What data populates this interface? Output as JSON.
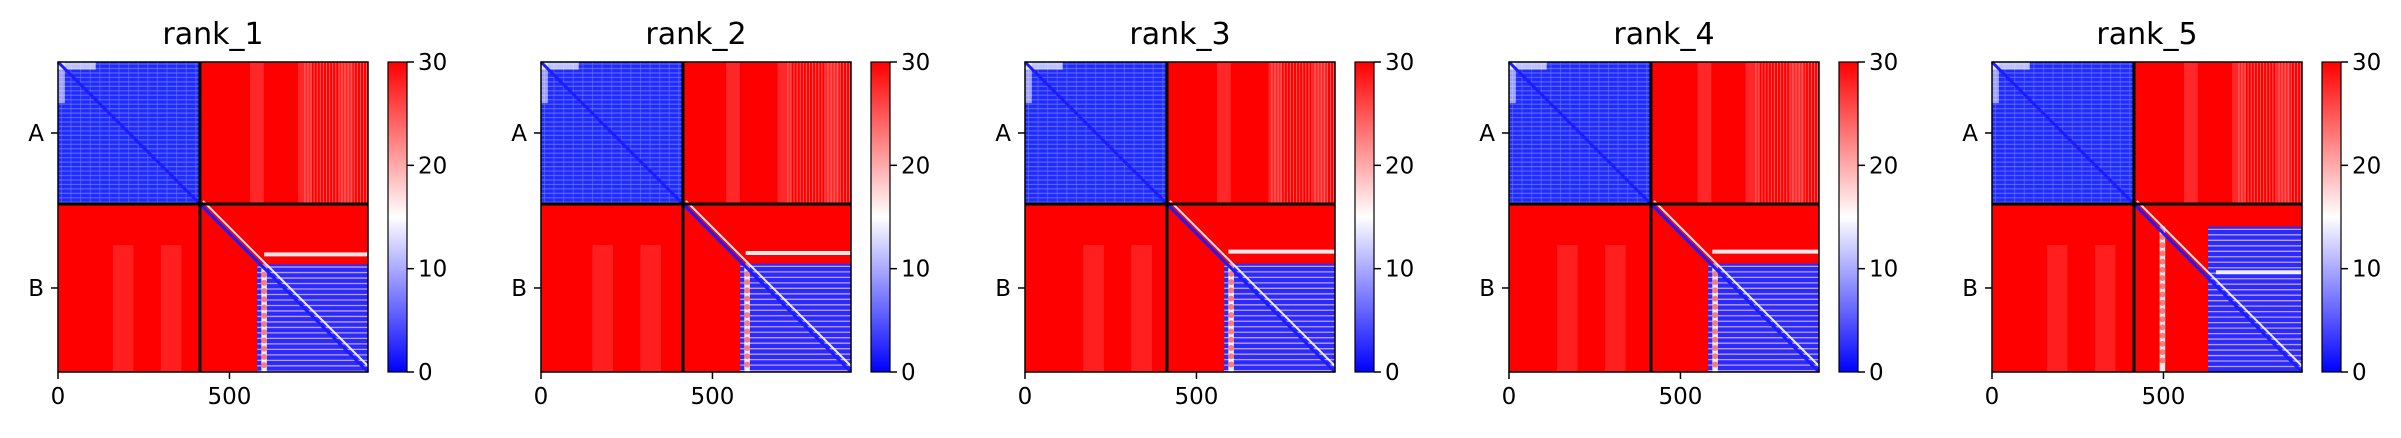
{
  "chart_data": [
    {
      "type": "heatmap",
      "title": "rank_1",
      "xlim": [
        0,
        904
      ],
      "x_ticks": [
        "0",
        "500"
      ],
      "x_tick_values": [
        0,
        500
      ],
      "chain_boundary": 414,
      "chains": [
        {
          "label": "A",
          "start": 0,
          "end": 414
        },
        {
          "label": "B",
          "start": 414,
          "end": 904
        }
      ],
      "colorbar": {
        "min": 0,
        "max": 30,
        "ticks": [
          "0",
          "10",
          "20",
          "30"
        ],
        "tick_values": [
          0,
          10,
          20,
          30
        ],
        "colormap": [
          "#0000ff",
          "#ffffff",
          "#ff0000"
        ]
      },
      "pattern": {
        "streaks": [
          160,
          300,
          560,
          700,
          820
        ],
        "b_band": 593,
        "b_line": 581,
        "b_mark": 601,
        "b_hline": 590
      }
    },
    {
      "type": "heatmap",
      "title": "rank_2",
      "xlim": [
        0,
        904
      ],
      "x_ticks": [
        "0",
        "500"
      ],
      "x_tick_values": [
        0,
        500
      ],
      "chain_boundary": 414,
      "chains": [
        {
          "label": "A",
          "start": 0,
          "end": 414
        },
        {
          "label": "B",
          "start": 414,
          "end": 904
        }
      ],
      "colorbar": {
        "min": 0,
        "max": 30,
        "ticks": [
          "0",
          "10",
          "20",
          "30"
        ],
        "tick_values": [
          0,
          10,
          20,
          30
        ],
        "colormap": [
          "#0000ff",
          "#ffffff",
          "#ff0000"
        ]
      },
      "pattern": {
        "streaks": [
          150,
          290,
          540,
          690,
          830
        ],
        "b_band": 593,
        "b_line": 581,
        "b_mark": 597,
        "b_hline": 588
      }
    },
    {
      "type": "heatmap",
      "title": "rank_3",
      "xlim": [
        0,
        904
      ],
      "x_ticks": [
        "0",
        "500"
      ],
      "x_tick_values": [
        0,
        500
      ],
      "chain_boundary": 414,
      "chains": [
        {
          "label": "A",
          "start": 0,
          "end": 414
        },
        {
          "label": "B",
          "start": 414,
          "end": 904
        }
      ],
      "colorbar": {
        "min": 0,
        "max": 30,
        "ticks": [
          "0",
          "10",
          "20",
          "30"
        ],
        "tick_values": [
          0,
          10,
          20,
          30
        ],
        "colormap": [
          "#0000ff",
          "#ffffff",
          "#ff0000"
        ]
      },
      "pattern": {
        "streaks": [
          170,
          310,
          560,
          710,
          840
        ],
        "b_band": 593,
        "b_line": 581,
        "b_mark": 593,
        "b_hline": 588
      }
    },
    {
      "type": "heatmap",
      "title": "rank_4",
      "xlim": [
        0,
        904
      ],
      "x_ticks": [
        "0",
        "500"
      ],
      "x_tick_values": [
        0,
        500
      ],
      "chain_boundary": 414,
      "chains": [
        {
          "label": "A",
          "start": 0,
          "end": 414
        },
        {
          "label": "B",
          "start": 414,
          "end": 904
        }
      ],
      "colorbar": {
        "min": 0,
        "max": 30,
        "ticks": [
          "0",
          "10",
          "20",
          "30"
        ],
        "tick_values": [
          0,
          10,
          20,
          30
        ],
        "colormap": [
          "#0000ff",
          "#ffffff",
          "#ff0000"
        ]
      },
      "pattern": {
        "streaks": [
          140,
          280,
          550,
          690,
          820
        ],
        "b_band": 593,
        "b_line": 581,
        "b_mark": 593,
        "b_hline": 588
      }
    },
    {
      "type": "heatmap",
      "title": "rank_5",
      "xlim": [
        0,
        904
      ],
      "x_ticks": [
        "0",
        "500"
      ],
      "x_tick_values": [
        0,
        500
      ],
      "chain_boundary": 414,
      "chains": [
        {
          "label": "A",
          "start": 0,
          "end": 414
        },
        {
          "label": "B",
          "start": 414,
          "end": 904
        }
      ],
      "colorbar": {
        "min": 0,
        "max": 30,
        "ticks": [
          "0",
          "10",
          "20",
          "30"
        ],
        "tick_values": [
          0,
          10,
          20,
          30
        ],
        "colormap": [
          "#0000ff",
          "#ffffff",
          "#ff0000"
        ]
      },
      "pattern": {
        "streaks": [
          160,
          300,
          560,
          700,
          830
        ],
        "b_band": 489,
        "b_line": 630,
        "b_mark": 653,
        "b_hline": 480
      }
    }
  ]
}
